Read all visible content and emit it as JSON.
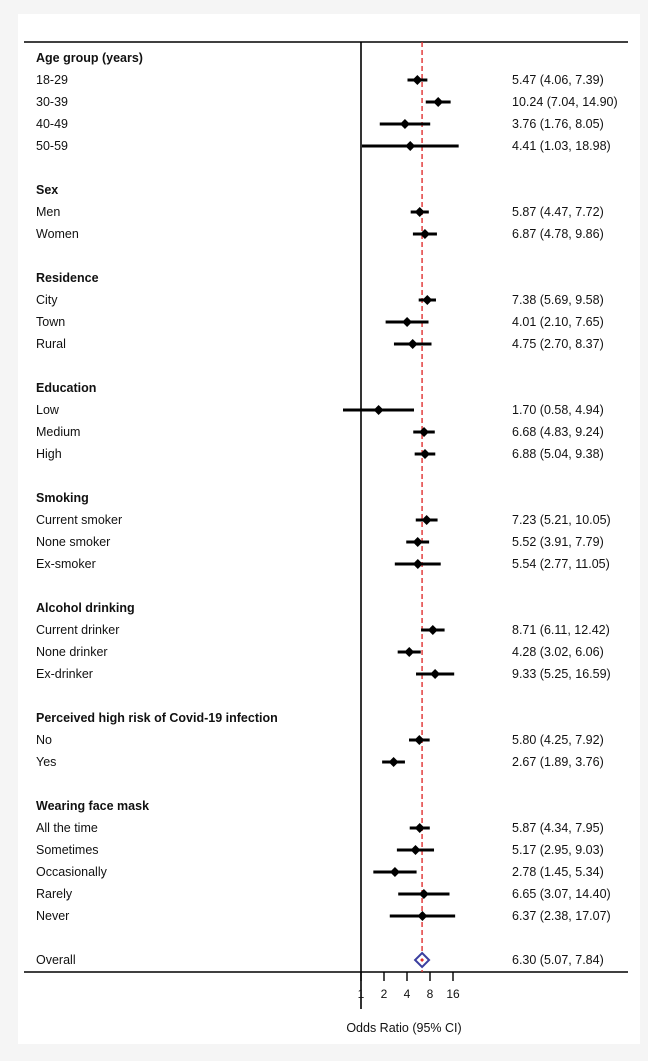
{
  "chart_data": {
    "type": "forest",
    "xlabel": "Odds Ratio (95% CI)",
    "x_scale": "log2",
    "xlim": [
      1,
      16
    ],
    "x_ticks": [
      1,
      2,
      4,
      8,
      16
    ],
    "reference_line": 6.3,
    "reference_line_color": "#e03030",
    "marker_color": "#000000",
    "overall_marker_color": "#3b3fa0",
    "groups": [
      {
        "label": "Age group (years)",
        "rows": [
          {
            "label": "18-29",
            "or": 5.47,
            "lo": 4.06,
            "hi": 7.39,
            "text": "5.47 (4.06, 7.39)"
          },
          {
            "label": "30-39",
            "or": 10.24,
            "lo": 7.04,
            "hi": 14.9,
            "text": "10.24 (7.04, 14.90)"
          },
          {
            "label": "40-49",
            "or": 3.76,
            "lo": 1.76,
            "hi": 8.05,
            "text": "3.76 (1.76, 8.05)"
          },
          {
            "label": "50-59",
            "or": 4.41,
            "lo": 1.03,
            "hi": 18.98,
            "text": "4.41 (1.03, 18.98)"
          }
        ]
      },
      {
        "label": "Sex",
        "rows": [
          {
            "label": "Men",
            "or": 5.87,
            "lo": 4.47,
            "hi": 7.72,
            "text": "5.87 (4.47, 7.72)"
          },
          {
            "label": "Women",
            "or": 6.87,
            "lo": 4.78,
            "hi": 9.86,
            "text": "6.87 (4.78, 9.86)"
          }
        ]
      },
      {
        "label": "Residence",
        "rows": [
          {
            "label": "City",
            "or": 7.38,
            "lo": 5.69,
            "hi": 9.58,
            "text": "7.38 (5.69, 9.58)"
          },
          {
            "label": "Town",
            "or": 4.01,
            "lo": 2.1,
            "hi": 7.65,
            "text": "4.01 (2.10, 7.65)"
          },
          {
            "label": "Rural",
            "or": 4.75,
            "lo": 2.7,
            "hi": 8.37,
            "text": "4.75 (2.70, 8.37)"
          }
        ]
      },
      {
        "label": "Education",
        "rows": [
          {
            "label": "Low",
            "or": 1.7,
            "lo": 0.58,
            "hi": 4.94,
            "text": "1.70 (0.58, 4.94)"
          },
          {
            "label": "Medium",
            "or": 6.68,
            "lo": 4.83,
            "hi": 9.24,
            "text": "6.68 (4.83, 9.24)"
          },
          {
            "label": "High",
            "or": 6.88,
            "lo": 5.04,
            "hi": 9.38,
            "text": "6.88 (5.04, 9.38)"
          }
        ]
      },
      {
        "label": "Smoking",
        "rows": [
          {
            "label": "Current smoker",
            "or": 7.23,
            "lo": 5.21,
            "hi": 10.05,
            "text": "7.23 (5.21, 10.05)"
          },
          {
            "label": "None smoker",
            "or": 5.52,
            "lo": 3.91,
            "hi": 7.79,
            "text": "5.52 (3.91, 7.79)"
          },
          {
            "label": "Ex-smoker",
            "or": 5.54,
            "lo": 2.77,
            "hi": 11.05,
            "text": "5.54 (2.77, 11.05)"
          }
        ]
      },
      {
        "label": "Alcohol drinking",
        "rows": [
          {
            "label": "Current drinker",
            "or": 8.71,
            "lo": 6.11,
            "hi": 12.42,
            "text": "8.71 (6.11, 12.42)"
          },
          {
            "label": "None drinker",
            "or": 4.28,
            "lo": 3.02,
            "hi": 6.06,
            "text": "4.28 (3.02, 6.06)"
          },
          {
            "label": "Ex-drinker",
            "or": 9.33,
            "lo": 5.25,
            "hi": 16.59,
            "text": "9.33 (5.25, 16.59)"
          }
        ]
      },
      {
        "label": "Perceived high risk of Covid-19 infection",
        "rows": [
          {
            "label": "No",
            "or": 5.8,
            "lo": 4.25,
            "hi": 7.92,
            "text": "5.80 (4.25, 7.92)"
          },
          {
            "label": "Yes",
            "or": 2.67,
            "lo": 1.89,
            "hi": 3.76,
            "text": "2.67 (1.89, 3.76)"
          }
        ]
      },
      {
        "label": "Wearing face mask",
        "rows": [
          {
            "label": "All the time",
            "or": 5.87,
            "lo": 4.34,
            "hi": 7.95,
            "text": "5.87 (4.34, 7.95)"
          },
          {
            "label": "Sometimes",
            "or": 5.17,
            "lo": 2.95,
            "hi": 9.03,
            "text": "5.17 (2.95, 9.03)"
          },
          {
            "label": "Occasionally",
            "or": 2.78,
            "lo": 1.45,
            "hi": 5.34,
            "text": "2.78 (1.45, 5.34)"
          },
          {
            "label": "Rarely",
            "or": 6.65,
            "lo": 3.07,
            "hi": 14.4,
            "text": "6.65 (3.07, 14.40)"
          },
          {
            "label": "Never",
            "or": 6.37,
            "lo": 2.38,
            "hi": 17.07,
            "text": "6.37 (2.38, 17.07)"
          }
        ]
      }
    ],
    "overall": {
      "label": "Overall",
      "or": 6.3,
      "lo": 5.07,
      "hi": 7.84,
      "text": "6.30 (5.07, 7.84)"
    }
  }
}
